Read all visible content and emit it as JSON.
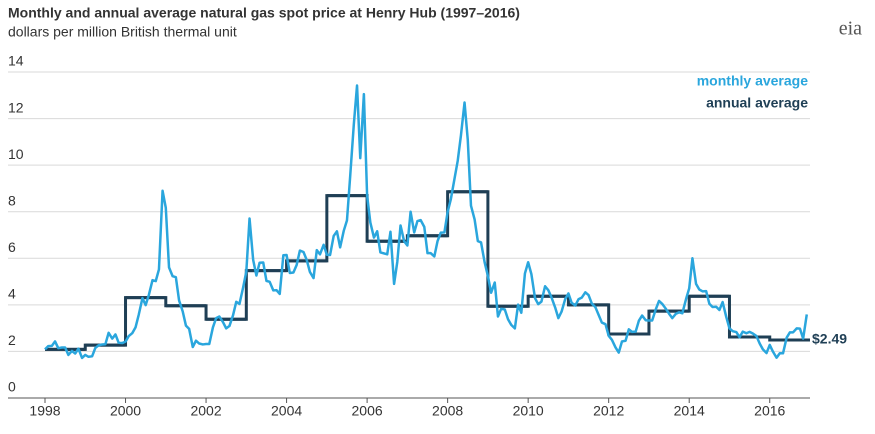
{
  "chart_data": {
    "type": "line",
    "title": "Monthly and annual average natural gas spot price at Henry Hub (1997–2016)",
    "subtitle": "dollars per million British thermal unit",
    "logo": "eia",
    "annotation": "$2.49",
    "xlim": [
      1998,
      2017
    ],
    "xticks": [
      1998,
      2000,
      2002,
      2004,
      2006,
      2008,
      2010,
      2012,
      2014,
      2016
    ],
    "ylim": [
      0,
      14
    ],
    "yticks": [
      0,
      2,
      4,
      6,
      8,
      10,
      12,
      14
    ],
    "grid": true,
    "series": [
      {
        "name": "monthly average",
        "color": "#2aa6dd",
        "x": [
          1998,
          1998.08,
          1998.17,
          1998.25,
          1998.33,
          1998.42,
          1998.5,
          1998.58,
          1998.67,
          1998.75,
          1998.83,
          1998.92,
          1999,
          1999.08,
          1999.17,
          1999.25,
          1999.33,
          1999.42,
          1999.5,
          1999.58,
          1999.67,
          1999.75,
          1999.83,
          1999.92,
          2000,
          2000.08,
          2000.17,
          2000.25,
          2000.33,
          2000.42,
          2000.5,
          2000.58,
          2000.67,
          2000.75,
          2000.83,
          2000.92,
          2001,
          2001.08,
          2001.17,
          2001.25,
          2001.33,
          2001.42,
          2001.5,
          2001.58,
          2001.67,
          2001.75,
          2001.83,
          2001.92,
          2002,
          2002.08,
          2002.17,
          2002.25,
          2002.33,
          2002.42,
          2002.5,
          2002.58,
          2002.67,
          2002.75,
          2002.83,
          2002.92,
          2003,
          2003.08,
          2003.17,
          2003.25,
          2003.33,
          2003.42,
          2003.5,
          2003.58,
          2003.67,
          2003.75,
          2003.83,
          2003.92,
          2004,
          2004.08,
          2004.17,
          2004.25,
          2004.33,
          2004.42,
          2004.5,
          2004.58,
          2004.67,
          2004.75,
          2004.83,
          2004.92,
          2005,
          2005.08,
          2005.17,
          2005.25,
          2005.33,
          2005.42,
          2005.5,
          2005.58,
          2005.67,
          2005.75,
          2005.83,
          2005.92,
          2006,
          2006.08,
          2006.17,
          2006.25,
          2006.33,
          2006.42,
          2006.5,
          2006.58,
          2006.67,
          2006.75,
          2006.83,
          2006.92,
          2007,
          2007.08,
          2007.17,
          2007.25,
          2007.33,
          2007.42,
          2007.5,
          2007.58,
          2007.67,
          2007.75,
          2007.83,
          2007.92,
          2008,
          2008.08,
          2008.17,
          2008.25,
          2008.33,
          2008.42,
          2008.5,
          2008.58,
          2008.67,
          2008.75,
          2008.83,
          2008.92,
          2009,
          2009.08,
          2009.17,
          2009.25,
          2009.33,
          2009.42,
          2009.5,
          2009.58,
          2009.67,
          2009.75,
          2009.83,
          2009.92,
          2010,
          2010.08,
          2010.17,
          2010.25,
          2010.33,
          2010.42,
          2010.5,
          2010.58,
          2010.67,
          2010.75,
          2010.83,
          2010.92,
          2011,
          2011.08,
          2011.17,
          2011.25,
          2011.33,
          2011.42,
          2011.5,
          2011.58,
          2011.67,
          2011.75,
          2011.83,
          2011.92,
          2012,
          2012.08,
          2012.17,
          2012.25,
          2012.33,
          2012.42,
          2012.5,
          2012.58,
          2012.67,
          2012.75,
          2012.83,
          2012.92,
          2013,
          2013.08,
          2013.17,
          2013.25,
          2013.33,
          2013.42,
          2013.5,
          2013.58,
          2013.67,
          2013.75,
          2013.83,
          2013.92,
          2014,
          2014.08,
          2014.17,
          2014.25,
          2014.33,
          2014.42,
          2014.5,
          2014.58,
          2014.67,
          2014.75,
          2014.83,
          2014.92,
          2015,
          2015.08,
          2015.17,
          2015.25,
          2015.33,
          2015.42,
          2015.5,
          2015.58,
          2015.67,
          2015.75,
          2015.83,
          2015.92,
          2016,
          2016.08,
          2016.17,
          2016.25,
          2016.33,
          2016.42,
          2016.5,
          2016.58,
          2016.67,
          2016.75,
          2016.83,
          2016.92
        ],
        "values": [
          2.09,
          2.23,
          2.24,
          2.43,
          2.14,
          2.17,
          2.17,
          1.85,
          2.02,
          1.91,
          2.12,
          1.72,
          1.85,
          1.77,
          1.79,
          2.15,
          2.26,
          2.3,
          2.31,
          2.8,
          2.55,
          2.73,
          2.37,
          2.36,
          2.42,
          2.66,
          2.79,
          3.04,
          3.59,
          4.29,
          3.99,
          4.43,
          5.06,
          5.02,
          5.52,
          8.9,
          8.17,
          5.61,
          5.23,
          5.19,
          4.19,
          3.72,
          3.11,
          2.97,
          2.19,
          2.46,
          2.34,
          2.3,
          2.32,
          2.32,
          3.03,
          3.43,
          3.5,
          3.26,
          2.99,
          3.09,
          3.55,
          4.13,
          4.04,
          4.74,
          5.43,
          7.71,
          5.93,
          5.26,
          5.81,
          5.82,
          5.03,
          4.99,
          4.62,
          4.63,
          4.47,
          6.13,
          6.14,
          5.37,
          5.39,
          5.71,
          6.33,
          6.27,
          5.93,
          5.41,
          5.15,
          6.35,
          6.17,
          6.58,
          6.15,
          6.14,
          6.96,
          7.16,
          6.47,
          7.18,
          7.63,
          9.53,
          11.75,
          13.42,
          10.3,
          13.05,
          8.69,
          7.54,
          6.89,
          7.16,
          6.25,
          6.21,
          6.17,
          7.14,
          4.9,
          5.85,
          7.41,
          6.73,
          6.55,
          8.0,
          7.11,
          7.6,
          7.64,
          7.35,
          6.22,
          6.22,
          6.08,
          6.74,
          7.1,
          7.11,
          7.99,
          8.54,
          9.41,
          10.18,
          11.27,
          12.69,
          11.09,
          8.26,
          7.67,
          6.74,
          6.68,
          5.82,
          5.24,
          4.52,
          4.96,
          3.5,
          3.83,
          3.8,
          3.38,
          3.14,
          2.99,
          4.01,
          3.66,
          5.35,
          5.83,
          5.32,
          4.29,
          4.03,
          4.14,
          4.8,
          4.63,
          4.32,
          3.89,
          3.43,
          3.71,
          4.25,
          4.49,
          4.09,
          3.97,
          4.24,
          4.31,
          4.54,
          4.42,
          4.06,
          3.9,
          3.57,
          3.24,
          3.17,
          2.67,
          2.5,
          2.17,
          1.95,
          2.43,
          2.46,
          2.95,
          2.84,
          2.85,
          3.32,
          3.54,
          3.34,
          3.33,
          3.33,
          3.81,
          4.17,
          4.04,
          3.83,
          3.62,
          3.43,
          3.62,
          3.68,
          3.64,
          4.24,
          4.71,
          6.0,
          4.9,
          4.66,
          4.58,
          4.59,
          4.05,
          3.91,
          3.92,
          3.78,
          4.12,
          3.48,
          2.99,
          2.87,
          2.83,
          2.61,
          2.85,
          2.78,
          2.84,
          2.77,
          2.66,
          2.34,
          2.09,
          1.93,
          2.28,
          1.99,
          1.73,
          1.92,
          1.92,
          2.59,
          2.82,
          2.82,
          2.99,
          2.98,
          2.55,
          3.59
        ]
      },
      {
        "name": "annual average",
        "color": "#1f3f55",
        "step": true,
        "x": [
          1998,
          1999,
          2000,
          2001,
          2002,
          2003,
          2004,
          2005,
          2006,
          2007,
          2008,
          2009,
          2010,
          2011,
          2012,
          2013,
          2014,
          2015,
          2016
        ],
        "values": [
          2.09,
          2.27,
          4.31,
          3.96,
          3.38,
          5.47,
          5.89,
          8.69,
          6.73,
          6.97,
          8.86,
          3.94,
          4.37,
          4.0,
          2.75,
          3.73,
          4.37,
          2.62,
          2.49
        ]
      }
    ]
  }
}
